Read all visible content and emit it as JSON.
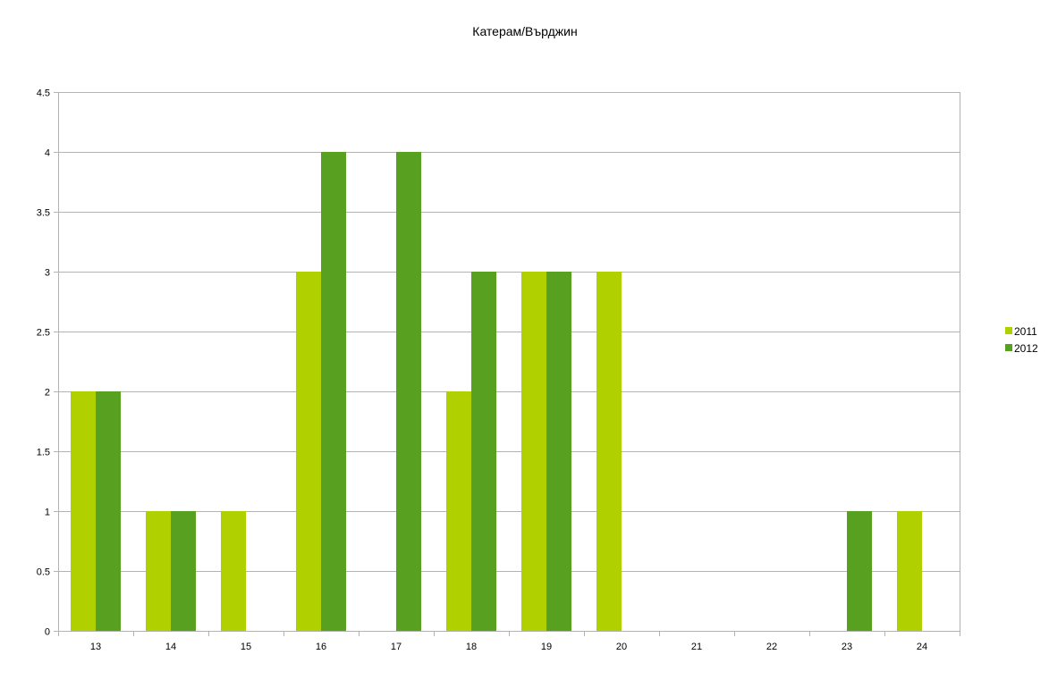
{
  "chart_data": {
    "type": "bar",
    "title": "Катерам/Върджин",
    "xlabel": "",
    "ylabel": "",
    "categories": [
      "13",
      "14",
      "15",
      "16",
      "17",
      "18",
      "19",
      "20",
      "21",
      "22",
      "23",
      "24"
    ],
    "series": [
      {
        "name": "2011",
        "color": "#b0d000",
        "values": [
          2,
          1,
          1,
          3,
          0,
          2,
          3,
          3,
          0,
          0,
          0,
          1
        ]
      },
      {
        "name": "2012",
        "color": "#58a020",
        "values": [
          2,
          1,
          0,
          4,
          4,
          3,
          3,
          0,
          0,
          0,
          1,
          0
        ]
      }
    ],
    "ylim": [
      0,
      4.5
    ],
    "yticks": [
      "0",
      "0.5",
      "1",
      "1.5",
      "2",
      "2.5",
      "3",
      "3.5",
      "4",
      "4.5"
    ],
    "grid": true,
    "legend_position": "right"
  }
}
